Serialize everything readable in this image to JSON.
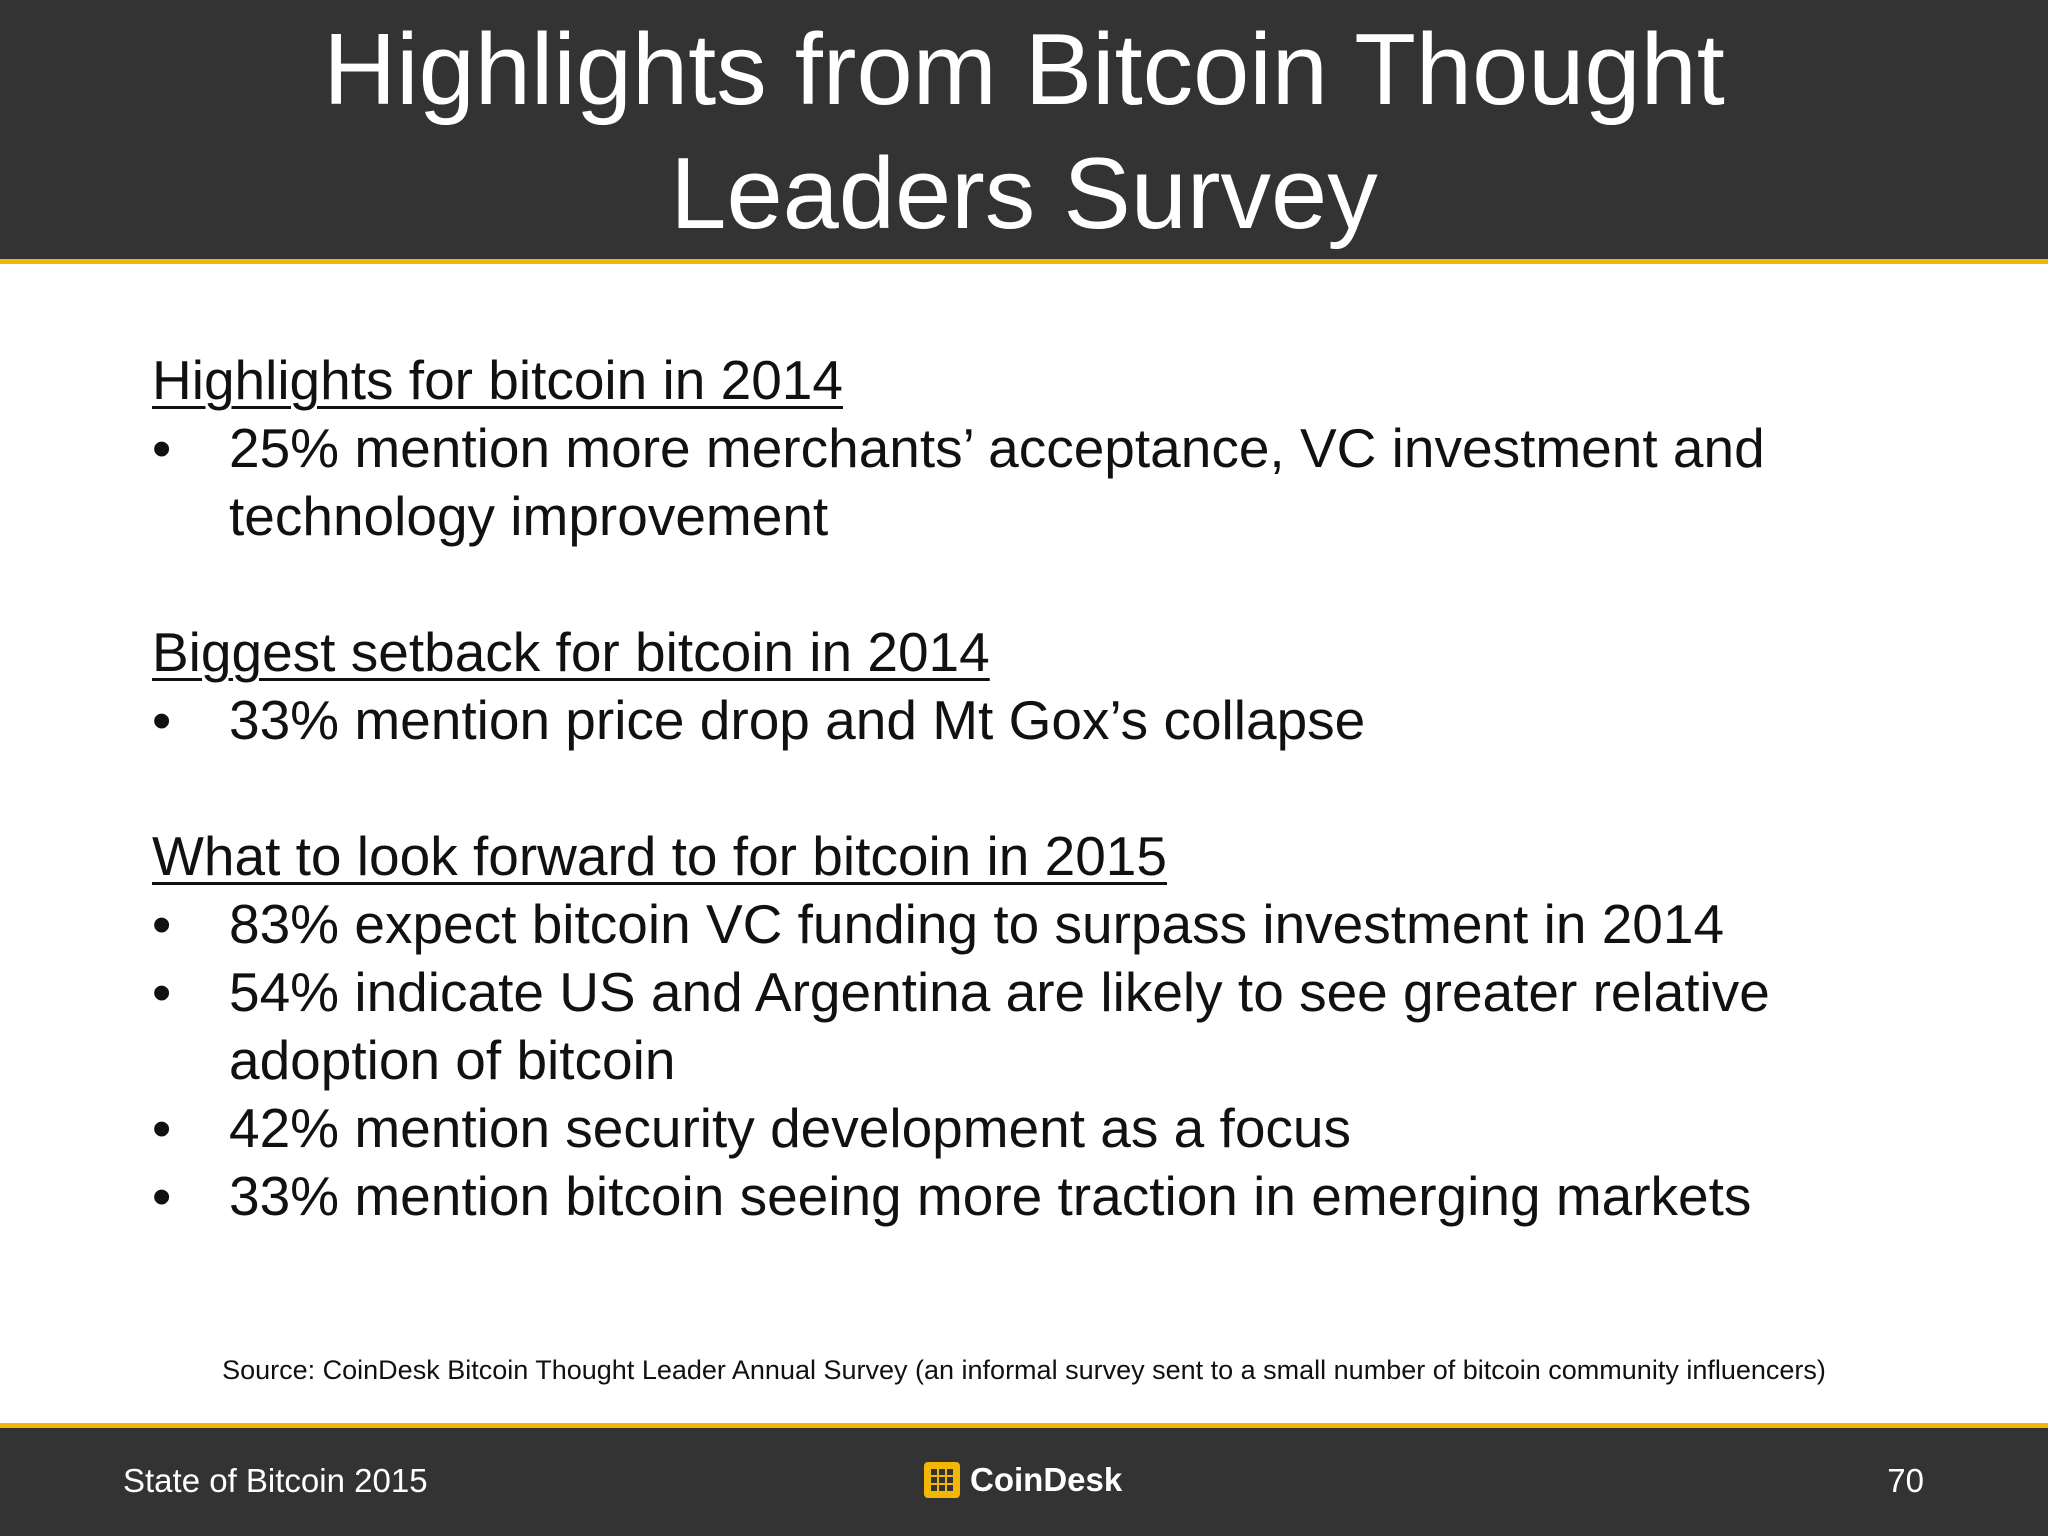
{
  "slide": {
    "title": "Highlights from Bitcoin Thought Leaders Survey",
    "sections": [
      {
        "heading": "Highlights for bitcoin in 2014",
        "bullets": [
          "25% mention more merchants’ acceptance, VC investment and technology improvement"
        ]
      },
      {
        "heading": "Biggest setback for bitcoin in 2014",
        "bullets": [
          "33% mention price drop and Mt Gox’s collapse"
        ]
      },
      {
        "heading": "What to look forward to for bitcoin in 2015",
        "bullets": [
          "83% expect bitcoin VC funding to surpass investment in 2014",
          "54% indicate US and Argentina are likely to see greater relative adoption of bitcoin",
          "42% mention security development as a focus",
          "33% mention bitcoin seeing more traction in emerging markets"
        ]
      }
    ],
    "bullet_symbol": "•",
    "source": "Source: CoinDesk Bitcoin Thought Leader Annual Survey (an informal survey sent to a small number of bitcoin community influencers)"
  },
  "footer": {
    "left_text": "State of Bitcoin 2015",
    "logo_text": "CoinDesk",
    "logo_icon": "coindesk-logo-icon",
    "page_number": "70"
  },
  "colors": {
    "bar_background": "#333333",
    "accent": "#f2b705",
    "body_background": "#ffffff",
    "text": "#111111"
  }
}
